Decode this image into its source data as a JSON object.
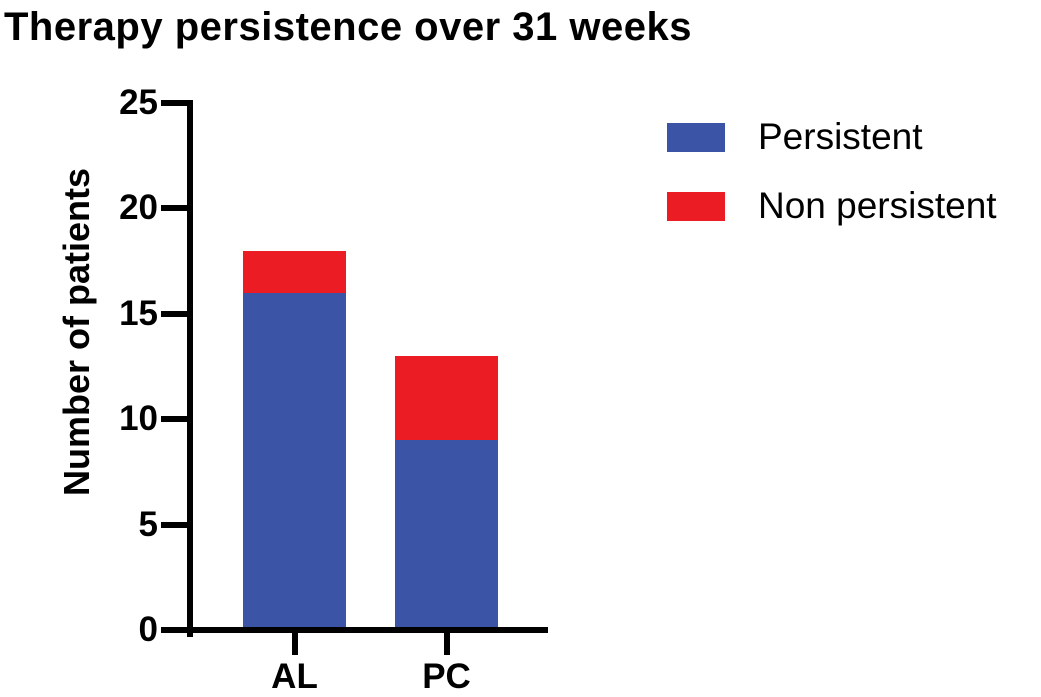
{
  "chart_data": {
    "type": "bar",
    "stacked": true,
    "title": "Therapy persistence over 31 weeks",
    "xlabel": "",
    "ylabel": "Number of patients",
    "categories": [
      "AL",
      "PC"
    ],
    "series": [
      {
        "name": "Persistent",
        "color": "#3B54A5",
        "values": [
          16,
          9
        ]
      },
      {
        "name": "Non persistent",
        "color": "#EC1C24",
        "values": [
          2,
          4
        ]
      }
    ],
    "totals": [
      18,
      13
    ],
    "ylim": [
      0,
      25
    ],
    "yticks": [
      0,
      5,
      10,
      15,
      20,
      25
    ],
    "grid": false,
    "legend_position": "top-right",
    "axis_color": "#000000",
    "text_color": "#000000"
  }
}
